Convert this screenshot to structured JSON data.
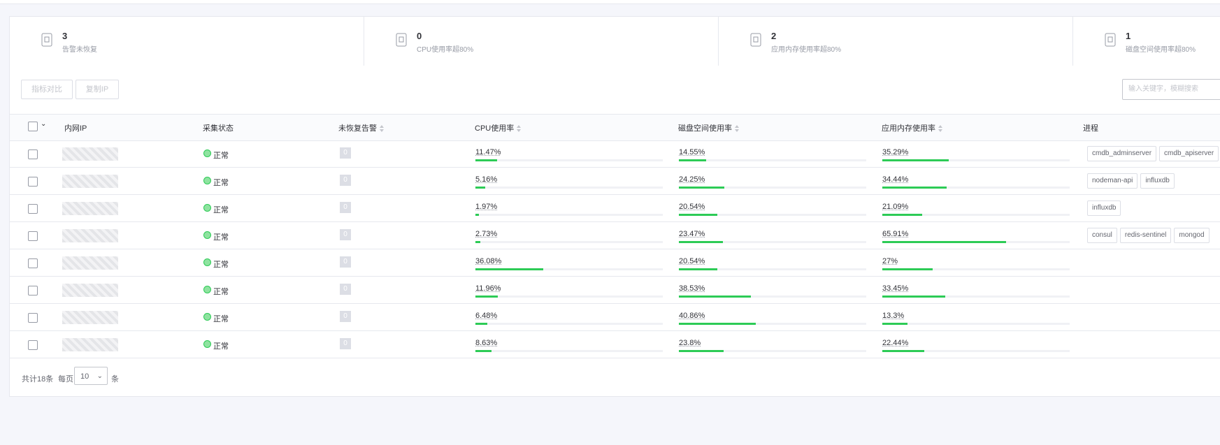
{
  "summary": [
    {
      "count": 3,
      "label": "告警未恢复"
    },
    {
      "count": 0,
      "label": "CPU使用率超80%"
    },
    {
      "count": 2,
      "label": "应用内存使用率超80%"
    },
    {
      "count": 1,
      "label": "磁盘空间使用率超80%"
    }
  ],
  "toolbar": {
    "buttons": [
      "指标对比",
      "复制IP"
    ],
    "search_placeholder": "输入关键字，模糊搜索"
  },
  "table": {
    "columns": [
      "内网IP",
      "采集状态",
      "未恢复告警",
      "CPU使用率",
      "磁盘空间使用率",
      "应用内存使用率",
      "进程"
    ],
    "rows": [
      {
        "status": "正常",
        "alarms": 0,
        "cpu": {
          "value": 11.47,
          "label": "11.47%"
        },
        "disk": {
          "value": 14.55,
          "label": "14.55%"
        },
        "memory": {
          "value": 35.29,
          "label": "35.29%"
        },
        "processes": [
          "cmdb_adminserver",
          "cmdb_apiserver"
        ]
      },
      {
        "status": "正常",
        "alarms": 0,
        "cpu": {
          "value": 5.16,
          "label": "5.16%"
        },
        "disk": {
          "value": 24.25,
          "label": "24.25%"
        },
        "memory": {
          "value": 34.44,
          "label": "34.44%"
        },
        "processes": [
          "nodeman-api",
          "influxdb"
        ]
      },
      {
        "status": "正常",
        "alarms": 0,
        "cpu": {
          "value": 1.97,
          "label": "1.97%"
        },
        "disk": {
          "value": 20.54,
          "label": "20.54%"
        },
        "memory": {
          "value": 21.09,
          "label": "21.09%"
        },
        "processes": [
          "influxdb"
        ]
      },
      {
        "status": "正常",
        "alarms": 0,
        "cpu": {
          "value": 2.73,
          "label": "2.73%"
        },
        "disk": {
          "value": 23.47,
          "label": "23.47%"
        },
        "memory": {
          "value": 65.91,
          "label": "65.91%"
        },
        "processes": [
          "consul",
          "redis-sentinel",
          "mongod"
        ]
      },
      {
        "status": "正常",
        "alarms": 0,
        "cpu": {
          "value": 36.08,
          "label": "36.08%"
        },
        "disk": {
          "value": 20.54,
          "label": "20.54%"
        },
        "memory": {
          "value": 27,
          "label": "27%"
        },
        "processes": []
      },
      {
        "status": "正常",
        "alarms": 0,
        "cpu": {
          "value": 11.96,
          "label": "11.96%"
        },
        "disk": {
          "value": 38.53,
          "label": "38.53%"
        },
        "memory": {
          "value": 33.45,
          "label": "33.45%"
        },
        "processes": []
      },
      {
        "status": "正常",
        "alarms": 0,
        "cpu": {
          "value": 6.48,
          "label": "6.48%"
        },
        "disk": {
          "value": 40.86,
          "label": "40.86%"
        },
        "memory": {
          "value": 13.3,
          "label": "13.3%"
        },
        "processes": []
      },
      {
        "status": "正常",
        "alarms": 0,
        "cpu": {
          "value": 8.63,
          "label": "8.63%"
        },
        "disk": {
          "value": 23.8,
          "label": "23.8%"
        },
        "memory": {
          "value": 22.44,
          "label": "22.44%"
        },
        "processes": []
      }
    ]
  },
  "pagination": {
    "total": "共计18条",
    "per_page_label": "每页",
    "per_page": 10,
    "unit": "条"
  }
}
